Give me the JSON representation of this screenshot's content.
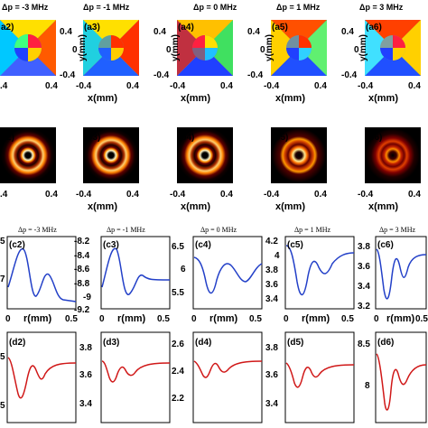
{
  "phase_row": {
    "titles": [
      "Δp = -3 MHz",
      "Δp = -1 MHz",
      "Δp = 0 MHz",
      "Δp = 1 MHz",
      "Δp = 3 MHz"
    ],
    "labels": [
      "a2)",
      "(a3)",
      "(a4)",
      "(a5)",
      "(a6)"
    ],
    "y_ticks": [
      "0.4",
      "0",
      "-0.4"
    ],
    "x_ticks": [
      "-0.4",
      "0.4"
    ],
    "ylabel": "y(mm)",
    "xlabel": "x(mm)"
  },
  "intensity_row": {
    "labels": [
      "b2)",
      "(b3)",
      "(b4)",
      "(b5)",
      "(b6)"
    ],
    "x_ticks": [
      "-0.4",
      "0.4"
    ],
    "xlabel": "x(mm)"
  },
  "profile_row_c": {
    "titles": [
      "Δp = -3 MHz",
      "Δp = -1 MHz",
      "Δp = 0 MHz",
      "Δp = 1 MHz",
      "Δp = 3 MHz"
    ],
    "labels": [
      "(c2)",
      "(c3)",
      "(c4)",
      "(c5)",
      "(c6)"
    ],
    "x_ticks": [
      "0",
      "0.5"
    ],
    "xlabel": "r(mm)"
  },
  "profile_row_d": {
    "labels": [
      "(d2)",
      "(d3)",
      "(d4)",
      "(d5)",
      "(d6)"
    ]
  },
  "chart_data": [
    {
      "panel": "c2",
      "type": "line",
      "color": "#2340c8",
      "ylim": [
        -9.2,
        -8.4
      ],
      "yticks": [
        "5",
        "7"
      ],
      "x": [
        0,
        0.05,
        0.1,
        0.15,
        0.2,
        0.25,
        0.3,
        0.35,
        0.4,
        0.45,
        0.5
      ]
    },
    {
      "panel": "c3",
      "type": "line",
      "color": "#2340c8",
      "ylim": [
        -9.2,
        -8.2
      ],
      "yticks": [
        "-8.2",
        "-8.4",
        "-8.6",
        "-8.8",
        "-9",
        "-9.2"
      ],
      "x": [
        0,
        0.5
      ]
    },
    {
      "panel": "c4",
      "type": "line",
      "color": "#2340c8",
      "ylim": [
        5.4,
        6.5
      ],
      "yticks": [
        "6.5",
        "6",
        "5.5"
      ],
      "x": [
        0,
        0.5
      ]
    },
    {
      "panel": "c5",
      "type": "line",
      "color": "#2340c8",
      "ylim": [
        3.4,
        4.2
      ],
      "yticks": [
        "4.2",
        "4",
        "3.8",
        "3.6",
        "3.4"
      ],
      "x": [
        0,
        0.5
      ]
    },
    {
      "panel": "c6",
      "type": "line",
      "color": "#2340c8",
      "ylim": [
        3.2,
        3.8
      ],
      "yticks": [
        "3.8",
        "3.6",
        "3.4",
        "3.2"
      ],
      "x": [
        0,
        0.5
      ]
    },
    {
      "panel": "d2",
      "type": "line",
      "color": "#d01818",
      "yticks": [
        "5",
        "5"
      ]
    },
    {
      "panel": "d3",
      "type": "line",
      "color": "#d01818",
      "ylim": [
        3.4,
        3.8
      ],
      "yticks": [
        "3.8",
        "3.6",
        "3.4"
      ]
    },
    {
      "panel": "d4",
      "type": "line",
      "color": "#d01818",
      "ylim": [
        2.2,
        2.6
      ],
      "yticks": [
        "2.6",
        "2.4",
        "2.2"
      ]
    },
    {
      "panel": "d5",
      "type": "line",
      "color": "#d01818",
      "ylim": [
        3.4,
        3.8
      ],
      "yticks": [
        "3.8",
        "3.6",
        "3.4"
      ]
    },
    {
      "panel": "d6",
      "type": "line",
      "color": "#d01818",
      "ylim": [
        7.8,
        8.6
      ],
      "yticks": [
        "8.5",
        "8"
      ]
    }
  ]
}
